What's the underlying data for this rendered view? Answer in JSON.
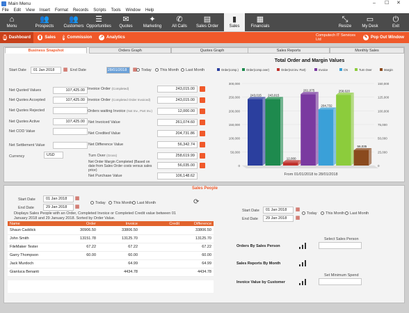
{
  "window": {
    "title": "Main Menu",
    "controls": [
      "–",
      "☐",
      "✕"
    ]
  },
  "menu": [
    "File",
    "Edit",
    "View",
    "Insert",
    "Format",
    "Records",
    "Scripts",
    "Tools",
    "Window",
    "Help"
  ],
  "toolbar": {
    "items": [
      {
        "label": "Menu",
        "icon": "home-icon"
      },
      {
        "label": "Prospects",
        "icon": "people-icon"
      },
      {
        "label": "Customers",
        "icon": "customers-icon"
      },
      {
        "label": "Opportunities",
        "icon": "opportunities-icon"
      },
      {
        "label": "Quotes",
        "icon": "quotes-icon"
      },
      {
        "label": "Marketing",
        "icon": "marketing-icon"
      },
      {
        "label": "All Calls",
        "icon": "phone-icon"
      },
      {
        "label": "Sales Order",
        "icon": "sales-order-icon"
      },
      {
        "label": "Sales",
        "icon": "chart-icon"
      },
      {
        "label": "Financials",
        "icon": "financials-icon"
      }
    ],
    "right_items": [
      {
        "label": "Resize",
        "icon": "resize-icon"
      },
      {
        "label": "My Desk",
        "icon": "monitor-icon"
      },
      {
        "label": "Exit",
        "icon": "power-icon"
      }
    ]
  },
  "nav": {
    "items": [
      "Dashboard",
      "Sales",
      "Commission",
      "Analytics"
    ],
    "company": "Computech IT Services Ltd",
    "popout": "Pop Out Window"
  },
  "tabs": [
    "Business Snapshot",
    "Orders Graph",
    "Quotes Graph",
    "Sales Reports",
    "Monthly Sales"
  ],
  "snapshot": {
    "start_date_label": "Start Date",
    "start_date": "01 Jan 2018",
    "end_date_label": "End Date",
    "end_date": "28/01/2018",
    "today": "Today",
    "this_month": "This Month",
    "last_month": "Last Month",
    "left_fields": [
      {
        "label": "Net Quoted Values",
        "value": "107,425.00"
      },
      {
        "label": "Net Quotes Accepted",
        "value": "107,425.00"
      },
      {
        "label": "Net Quotes Rejected",
        "value": ""
      },
      {
        "label": "Net Quotes Active",
        "value": "107,425.00"
      },
      {
        "label": "Net COD Value",
        "value": ""
      },
      {
        "label": "Net Settlement Value",
        "value": ""
      }
    ],
    "currency_label": "Currency",
    "currency": "USD",
    "right_fields": [
      {
        "label": "Invoice Order",
        "sub": "(Completed)",
        "value": "243,015.00"
      },
      {
        "label": "Invoice Order",
        "sub": "(Completed Order Invoiced)",
        "value": "243,015.00"
      },
      {
        "label": "Orders waiting Invoice",
        "sub": "(Not Inv., Part Inv.)",
        "value": "12,000.00"
      },
      {
        "label": "Net Invoiced Value",
        "sub": "",
        "value": "261,074.60"
      },
      {
        "label": "Net Credited Value",
        "sub": "",
        "value": "204,731.86"
      },
      {
        "label": "Net Difference Value",
        "sub": "",
        "value": "56,342.74"
      },
      {
        "label": "Turn Over",
        "sub": "(Gross)",
        "value": "258,619.99"
      },
      {
        "label": "Net Order Margin Completed (Based on date from Sales Order costs versus sales price)",
        "sub": "",
        "value": "56,035.00"
      },
      {
        "label": "Net Purchase Value",
        "sub": "",
        "value": "106,148.62"
      }
    ]
  },
  "chart_data": {
    "type": "bar",
    "title": "Total Order and Margin Values",
    "xlabel": "From 01/01/2018 to 28/01/2018",
    "legend": [
      "Order(comp.)",
      "Order(comp.over)",
      "Order(not inv. Part)",
      "Invoice",
      "CN",
      "Turn Over",
      "Margin"
    ],
    "colors": [
      "#2b3f9e",
      "#1e8a4e",
      "#c0312b",
      "#7a3aa0",
      "#3aa0d8",
      "#8ccc3c",
      "#8a4a1e"
    ],
    "values": [
      243015,
      243015,
      12000,
      261075,
      204732,
      258620,
      56035
    ],
    "labels": [
      "243,015",
      "243,015",
      "12,000",
      "261,075",
      "204,732",
      "258,620",
      "56,035"
    ],
    "left_ticks": [
      "0",
      "50,000",
      "100,000",
      "150,000",
      "200,000",
      "250,000",
      "300,000"
    ],
    "right_ticks": [
      "0",
      "25,000",
      "50,000",
      "75,000",
      "100,000",
      "125,000",
      "150,000"
    ],
    "ylim": [
      0,
      300000
    ]
  },
  "sales_people": {
    "title": "Sales People",
    "start_date_label": "Start Date",
    "start_date": "01 Jan 2018",
    "end_date_label": "End Date",
    "end_date": "29 Jan 2018",
    "today": "Today",
    "this_month": "This Month",
    "last_month": "Last Month",
    "desc": "Displays Sales People with an Order, Completed Invoice or Completed Credit value between 01 January 2018 and 29 January 2018. Sorted by Order Value.",
    "columns": [
      "Name",
      "Order",
      "Invoice",
      "Credit",
      "Difference"
    ],
    "rows": [
      [
        "Shaun Caddick",
        "30906.50",
        "33806.50",
        "",
        "33806.50"
      ],
      [
        "John Smith",
        "13151.78",
        "13125.70",
        "",
        "13125.70"
      ],
      [
        "FileMaker Tester",
        "67.22",
        "67.22",
        "",
        "67.22"
      ],
      [
        "Garry Thompson",
        "60.00",
        "60.00",
        "",
        "60.00"
      ],
      [
        "Jack Murdoch",
        "",
        "64.99",
        "",
        "64.99"
      ],
      [
        "Gianluca Benanti",
        "",
        "4434.78",
        "",
        "4434.78"
      ]
    ]
  },
  "reports": {
    "start_date_label": "Start Date",
    "start_date": "01 Jan 2018",
    "end_date_label": "End Date",
    "end_date": "29 Jan 2018",
    "today": "Today",
    "this_month": "This Month",
    "last_month": "Last Month",
    "select_sales_person": "Select Sales Person",
    "set_min_spend": "Set Minimum Spend",
    "items": [
      "Orders By Sales Person",
      "Sales Reports By Month",
      "Invoice Value by Customer"
    ]
  }
}
